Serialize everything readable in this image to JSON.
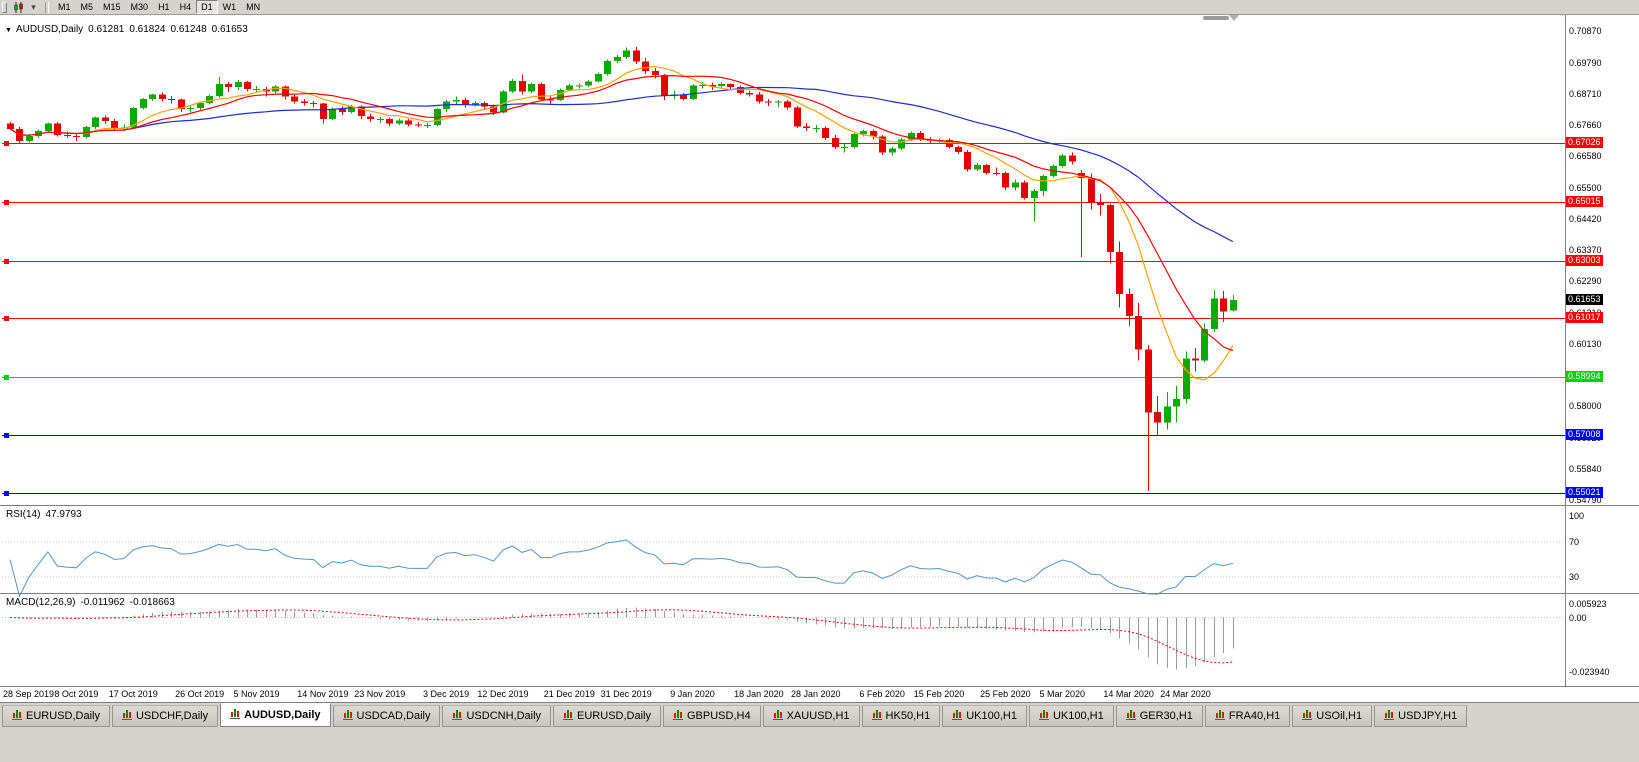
{
  "toolbar": {
    "timeframes": [
      "M1",
      "M5",
      "M15",
      "M30",
      "H1",
      "H4",
      "D1",
      "W1",
      "MN"
    ],
    "active": "D1"
  },
  "chart_data": {
    "type": "candlestick",
    "symbol": "AUDUSD",
    "timeframe": "Daily",
    "title": {
      "symbol_label": "AUDUSD,Daily",
      "open": "0.61281",
      "high": "0.61824",
      "low": "0.61248",
      "close": "0.61653"
    },
    "candle_colors": {
      "up": "#0caa00",
      "down": "#e60000"
    },
    "candles": [
      [
        0.677,
        0.6776,
        0.6748,
        0.6752
      ],
      [
        0.6752,
        0.6758,
        0.6702,
        0.671
      ],
      [
        0.671,
        0.6734,
        0.67,
        0.6728
      ],
      [
        0.6728,
        0.675,
        0.672,
        0.6744
      ],
      [
        0.6744,
        0.6774,
        0.6738,
        0.677
      ],
      [
        0.677,
        0.6775,
        0.6725,
        0.6731
      ],
      [
        0.6731,
        0.6742,
        0.672,
        0.6727
      ],
      [
        0.6727,
        0.6736,
        0.671,
        0.6724
      ],
      [
        0.6724,
        0.6762,
        0.6718,
        0.6758
      ],
      [
        0.6758,
        0.6794,
        0.6752,
        0.679
      ],
      [
        0.679,
        0.6798,
        0.6768,
        0.6779
      ],
      [
        0.6779,
        0.6785,
        0.6748,
        0.6753
      ],
      [
        0.6753,
        0.6766,
        0.6745,
        0.6757
      ],
      [
        0.6757,
        0.6827,
        0.6755,
        0.6823
      ],
      [
        0.6823,
        0.6858,
        0.6818,
        0.6855
      ],
      [
        0.6855,
        0.6872,
        0.6848,
        0.6869
      ],
      [
        0.6869,
        0.6877,
        0.6846,
        0.6855
      ],
      [
        0.6855,
        0.6864,
        0.6838,
        0.6852
      ],
      [
        0.6852,
        0.6856,
        0.681,
        0.682
      ],
      [
        0.682,
        0.6832,
        0.6808,
        0.6823
      ],
      [
        0.6823,
        0.6845,
        0.6814,
        0.684
      ],
      [
        0.684,
        0.687,
        0.6835,
        0.6865
      ],
      [
        0.6865,
        0.6929,
        0.686,
        0.6905
      ],
      [
        0.6905,
        0.6912,
        0.6878,
        0.6895
      ],
      [
        0.6895,
        0.692,
        0.6885,
        0.6913
      ],
      [
        0.6913,
        0.6916,
        0.688,
        0.6888
      ],
      [
        0.6888,
        0.6898,
        0.6875,
        0.6888
      ],
      [
        0.6888,
        0.6895,
        0.6862,
        0.688
      ],
      [
        0.688,
        0.6903,
        0.687,
        0.6897
      ],
      [
        0.6897,
        0.69,
        0.6853,
        0.6862
      ],
      [
        0.6862,
        0.687,
        0.6838,
        0.6845
      ],
      [
        0.6845,
        0.6855,
        0.6832,
        0.684
      ],
      [
        0.684,
        0.6848,
        0.6825,
        0.6838
      ],
      [
        0.6838,
        0.684,
        0.677,
        0.6785
      ],
      [
        0.6785,
        0.6825,
        0.6782,
        0.682
      ],
      [
        0.682,
        0.6828,
        0.68,
        0.681
      ],
      [
        0.681,
        0.6834,
        0.6805,
        0.6828
      ],
      [
        0.6828,
        0.6832,
        0.6786,
        0.6795
      ],
      [
        0.6795,
        0.6805,
        0.6776,
        0.6785
      ],
      [
        0.6785,
        0.6792,
        0.6772,
        0.6785
      ],
      [
        0.6785,
        0.679,
        0.6762,
        0.677
      ],
      [
        0.677,
        0.6788,
        0.6765,
        0.678
      ],
      [
        0.678,
        0.6785,
        0.676,
        0.6766
      ],
      [
        0.6766,
        0.6775,
        0.6758,
        0.6765
      ],
      [
        0.6765,
        0.6772,
        0.6754,
        0.6765
      ],
      [
        0.6765,
        0.6824,
        0.6762,
        0.682
      ],
      [
        0.682,
        0.685,
        0.681,
        0.6845
      ],
      [
        0.6845,
        0.6862,
        0.6835,
        0.685
      ],
      [
        0.685,
        0.6858,
        0.6825,
        0.6835
      ],
      [
        0.6835,
        0.6848,
        0.6828,
        0.684
      ],
      [
        0.684,
        0.6846,
        0.682,
        0.6828
      ],
      [
        0.6828,
        0.6835,
        0.68,
        0.6808
      ],
      [
        0.6808,
        0.6885,
        0.6804,
        0.688
      ],
      [
        0.688,
        0.6922,
        0.6875,
        0.6916
      ],
      [
        0.6916,
        0.6938,
        0.687,
        0.688
      ],
      [
        0.688,
        0.691,
        0.6875,
        0.6905
      ],
      [
        0.6905,
        0.691,
        0.6849,
        0.6853
      ],
      [
        0.6853,
        0.6862,
        0.6838,
        0.6851
      ],
      [
        0.6851,
        0.689,
        0.6848,
        0.6885
      ],
      [
        0.6885,
        0.6905,
        0.688,
        0.69
      ],
      [
        0.69,
        0.6908,
        0.689,
        0.69
      ],
      [
        0.69,
        0.692,
        0.6895,
        0.6915
      ],
      [
        0.6915,
        0.6945,
        0.691,
        0.694
      ],
      [
        0.694,
        0.699,
        0.6935,
        0.6985
      ],
      [
        0.6985,
        0.7005,
        0.6978,
        0.6998
      ],
      [
        0.6998,
        0.703,
        0.6992,
        0.7021
      ],
      [
        0.7021,
        0.7032,
        0.6975,
        0.6983
      ],
      [
        0.6983,
        0.6995,
        0.694,
        0.695
      ],
      [
        0.695,
        0.696,
        0.6925,
        0.6936
      ],
      [
        0.6936,
        0.694,
        0.685,
        0.6865
      ],
      [
        0.6865,
        0.6884,
        0.6855,
        0.687
      ],
      [
        0.687,
        0.6875,
        0.6849,
        0.6855
      ],
      [
        0.6855,
        0.6905,
        0.685,
        0.69
      ],
      [
        0.69,
        0.6912,
        0.689,
        0.6902
      ],
      [
        0.6902,
        0.691,
        0.6885,
        0.6898
      ],
      [
        0.6898,
        0.691,
        0.689,
        0.6905
      ],
      [
        0.6905,
        0.6908,
        0.6885,
        0.6895
      ],
      [
        0.6895,
        0.69,
        0.687,
        0.6875
      ],
      [
        0.6875,
        0.6884,
        0.6862,
        0.687
      ],
      [
        0.687,
        0.6878,
        0.6838,
        0.6845
      ],
      [
        0.6845,
        0.6855,
        0.683,
        0.6843
      ],
      [
        0.6843,
        0.685,
        0.6826,
        0.6845
      ],
      [
        0.6845,
        0.685,
        0.6818,
        0.6825
      ],
      [
        0.6825,
        0.683,
        0.6754,
        0.676
      ],
      [
        0.676,
        0.6772,
        0.6745,
        0.6755
      ],
      [
        0.6755,
        0.6765,
        0.674,
        0.6755
      ],
      [
        0.6755,
        0.676,
        0.6713,
        0.672
      ],
      [
        0.672,
        0.673,
        0.6682,
        0.669
      ],
      [
        0.669,
        0.67,
        0.667,
        0.669
      ],
      [
        0.669,
        0.674,
        0.6685,
        0.6735
      ],
      [
        0.6735,
        0.675,
        0.6725,
        0.6745
      ],
      [
        0.6745,
        0.675,
        0.6715,
        0.6725
      ],
      [
        0.6725,
        0.673,
        0.6662,
        0.667
      ],
      [
        0.667,
        0.669,
        0.666,
        0.6685
      ],
      [
        0.6685,
        0.672,
        0.668,
        0.6715
      ],
      [
        0.6715,
        0.6743,
        0.671,
        0.6738
      ],
      [
        0.6738,
        0.6745,
        0.671,
        0.6715
      ],
      [
        0.6715,
        0.6722,
        0.67,
        0.671
      ],
      [
        0.671,
        0.6718,
        0.67,
        0.6713
      ],
      [
        0.6713,
        0.6718,
        0.6685,
        0.669
      ],
      [
        0.669,
        0.6695,
        0.6665,
        0.6672
      ],
      [
        0.6672,
        0.668,
        0.6605,
        0.6612
      ],
      [
        0.6612,
        0.6635,
        0.6608,
        0.6628
      ],
      [
        0.6628,
        0.6632,
        0.6595,
        0.6601
      ],
      [
        0.6601,
        0.662,
        0.6592,
        0.66
      ],
      [
        0.66,
        0.6605,
        0.6542,
        0.655
      ],
      [
        0.655,
        0.6578,
        0.654,
        0.6568
      ],
      [
        0.6568,
        0.6575,
        0.651,
        0.6515
      ],
      [
        0.6515,
        0.6545,
        0.6434,
        0.6538
      ],
      [
        0.6538,
        0.6595,
        0.652,
        0.659
      ],
      [
        0.659,
        0.663,
        0.6585,
        0.6625
      ],
      [
        0.6625,
        0.6665,
        0.662,
        0.666
      ],
      [
        0.666,
        0.667,
        0.663,
        0.664
      ],
      [
        0.66,
        0.661,
        0.6313,
        0.6583
      ],
      [
        0.6583,
        0.6598,
        0.6475,
        0.65
      ],
      [
        0.65,
        0.6528,
        0.6455,
        0.649
      ],
      [
        0.649,
        0.6495,
        0.629,
        0.633
      ],
      [
        0.633,
        0.6365,
        0.614,
        0.6185
      ],
      [
        0.6185,
        0.6205,
        0.6075,
        0.611
      ],
      [
        0.611,
        0.6155,
        0.5958,
        0.5995
      ],
      [
        0.5995,
        0.601,
        0.551,
        0.578
      ],
      [
        0.578,
        0.5835,
        0.5702,
        0.5745
      ],
      [
        0.5745,
        0.585,
        0.572,
        0.58
      ],
      [
        0.58,
        0.587,
        0.5745,
        0.5825
      ],
      [
        0.5825,
        0.5988,
        0.581,
        0.5965
      ],
      [
        0.5965,
        0.6,
        0.592,
        0.5958
      ],
      [
        0.5958,
        0.6085,
        0.595,
        0.6065
      ],
      [
        0.6065,
        0.62,
        0.6055,
        0.617
      ],
      [
        0.617,
        0.6195,
        0.609,
        0.6125
      ],
      [
        0.61281,
        0.61824,
        0.61248,
        0.61653
      ]
    ],
    "moving_averages": [
      {
        "name": "ma-slow",
        "period": 34,
        "color": "#1a2ecc"
      },
      {
        "name": "ma-fast",
        "period": 8,
        "color": "#ffa200"
      },
      {
        "name": "ma-mid",
        "period": 13,
        "color": "#ff0000"
      }
    ],
    "h_lines": [
      {
        "label": "0.67026",
        "price": 0.67026,
        "color": "#ff0000"
      },
      {
        "label": "0.65015",
        "price": 0.65015,
        "color": "#ff0000"
      },
      {
        "label": "0.63003",
        "price": 0.63003,
        "color": "#ff0000"
      },
      {
        "label": "0.61017",
        "price": 0.61017,
        "color": "#ff0000"
      },
      {
        "label": "0.58994",
        "price": 0.58994,
        "color": "#00d200"
      },
      {
        "label": "0.57008",
        "price": 0.57008,
        "color": "#0000ff"
      },
      {
        "label": "0.55021",
        "price": 0.55021,
        "color": "#0000ff"
      }
    ],
    "current_price": {
      "label": "0.61653",
      "value": 0.61653
    },
    "price_axis": {
      "ticks": [
        {
          "t": "0.70870",
          "v": 0.7087
        },
        {
          "t": "0.69790",
          "v": 0.6979
        },
        {
          "t": "0.68710",
          "v": 0.6871
        },
        {
          "t": "0.67660",
          "v": 0.6766
        },
        {
          "t": "0.66580",
          "v": 0.6658
        },
        {
          "t": "0.65500",
          "v": 0.655
        },
        {
          "t": "0.64420",
          "v": 0.6442
        },
        {
          "t": "0.63370",
          "v": 0.6337
        },
        {
          "t": "0.62290",
          "v": 0.6229
        },
        {
          "t": "0.61210",
          "v": 0.6121
        },
        {
          "t": "0.60130",
          "v": 0.6013
        },
        {
          "t": "0.59050",
          "v": 0.5905
        },
        {
          "t": "0.58000",
          "v": 0.58
        },
        {
          "t": "0.56920",
          "v": 0.5692
        },
        {
          "t": "0.55840",
          "v": 0.5584
        },
        {
          "t": "0.54790",
          "v": 0.5479
        }
      ]
    },
    "time_axis": [
      {
        "t": "28 Sep 2019",
        "bar": 0
      },
      {
        "t": "8 Oct 2019",
        "bar": 7
      },
      {
        "t": "17 Oct 2019",
        "bar": 13
      },
      {
        "t": "26 Oct 2019",
        "bar": 20
      },
      {
        "t": "5 Nov 2019",
        "bar": 26
      },
      {
        "t": "14 Nov 2019",
        "bar": 33
      },
      {
        "t": "23 Nov 2019",
        "bar": 39
      },
      {
        "t": "3 Dec 2019",
        "bar": 46
      },
      {
        "t": "12 Dec 2019",
        "bar": 52
      },
      {
        "t": "21 Dec 2019",
        "bar": 59
      },
      {
        "t": "31 Dec 2019",
        "bar": 65
      },
      {
        "t": "9 Jan 2020",
        "bar": 72
      },
      {
        "t": "18 Jan 2020",
        "bar": 79
      },
      {
        "t": "28 Jan 2020",
        "bar": 85
      },
      {
        "t": "6 Feb 2020",
        "bar": 92
      },
      {
        "t": "15 Feb 2020",
        "bar": 98
      },
      {
        "t": "25 Feb 2020",
        "bar": 105
      },
      {
        "t": "5 Mar 2020",
        "bar": 111
      },
      {
        "t": "14 Mar 2020",
        "bar": 118
      },
      {
        "t": "24 Mar 2020",
        "bar": 124
      }
    ],
    "rsi": {
      "label": "RSI(14)",
      "value": "47.9793",
      "period": 14,
      "color": "#4f94cd",
      "levels": [
        {
          "t": "100",
          "v": 100
        },
        {
          "t": "70",
          "v": 70
        },
        {
          "t": "30",
          "v": 30
        }
      ]
    },
    "macd": {
      "label": "MACD(12,26,9)",
      "main": "-0.011962",
      "signal": "-0.018663",
      "fast": 12,
      "slow": 26,
      "signal_period": 9,
      "hist_color": "#9a9a9a",
      "signal_color": "#ff0000",
      "axis": [
        {
          "t": "0.005923",
          "v": 0.005923
        },
        {
          "t": "0.00",
          "v": 0
        },
        {
          "t": "-0.023940",
          "v": -0.02394
        }
      ]
    }
  },
  "tabs": {
    "active_index": 2,
    "items": [
      "EURUSD,Daily",
      "USDCHF,Daily",
      "AUDUSD,Daily",
      "USDCAD,Daily",
      "USDCNH,Daily",
      "EURUSD,Daily",
      "GBPUSD,H4",
      "XAUUSD,H1",
      "HK50,H1",
      "UK100,H1",
      "UK100,H1",
      "GER30,H1",
      "FRA40,H1",
      "USOil,H1",
      "USDJPY,H1"
    ]
  }
}
